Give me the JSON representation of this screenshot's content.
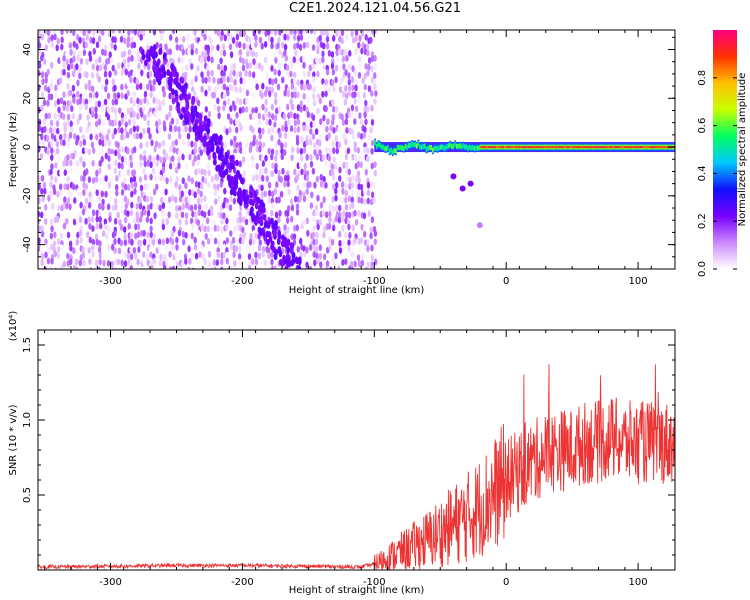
{
  "title": "C2E1.2024.121.04.56.G21",
  "chart_data": [
    {
      "type": "heatmap",
      "xlabel": "Height of straight line (km)",
      "ylabel": "Frequency (Hz)",
      "xlim": [
        -355,
        128
      ],
      "ylim": [
        -50,
        48
      ],
      "xticks": [
        -300,
        -200,
        -100,
        0,
        100
      ],
      "yticks": [
        -40,
        -20,
        0,
        20,
        40
      ],
      "colorbar": {
        "label": "Normalized spectral amplitude",
        "range": [
          0.0,
          1.0
        ],
        "ticks": [
          0.0,
          0.2,
          0.4,
          0.6,
          0.8
        ],
        "tick_labels": [
          "0.0",
          "0.2",
          "0.4",
          "0.6",
          "0.8"
        ],
        "colors": [
          "#ffffff",
          "#cc88ff",
          "#7700ff",
          "#1010ff",
          "#00c8ff",
          "#00ff60",
          "#c8ff00",
          "#ffc000",
          "#ff3000",
          "#ff0080"
        ]
      },
      "features": [
        {
          "name": "noise",
          "x_range": [
            -355,
            -100
          ],
          "y_range": [
            -50,
            48
          ],
          "amplitude": [
            0.0,
            0.15
          ]
        },
        {
          "name": "diagonal",
          "x_start": -270,
          "y_start": 40,
          "x_end": -160,
          "y_end": -50,
          "amplitude": 0.2
        },
        {
          "name": "signal line",
          "x_range": [
            -100,
            128
          ],
          "y_center": 0,
          "amplitude": [
            0.4,
            1.0
          ]
        }
      ]
    },
    {
      "type": "line",
      "xlabel": "Height of straight line (km)",
      "ylabel": "SNR (10 * v/v)",
      "y_multiplier": "(x10⁴)",
      "xlim": [
        -355,
        128
      ],
      "ylim": [
        0,
        1.6
      ],
      "xticks": [
        -300,
        -200,
        -100,
        0,
        100
      ],
      "yticks": [
        0.5,
        1.0,
        1.5
      ],
      "ytick_labels": [
        "0.5",
        "1.0",
        "1.5"
      ],
      "color": "#ee3333",
      "series": [
        {
          "x": [
            -355,
            -300,
            -250,
            -200,
            -150,
            -110,
            -100,
            -90,
            -80,
            -70,
            -60,
            -50,
            -40,
            -30,
            -20,
            -10,
            0,
            10,
            20,
            30,
            40,
            50,
            60,
            70,
            80,
            90,
            100,
            110,
            120,
            128
          ],
          "values": [
            0.02,
            0.025,
            0.03,
            0.03,
            0.025,
            0.02,
            0.04,
            0.08,
            0.12,
            0.16,
            0.2,
            0.25,
            0.3,
            0.35,
            0.42,
            0.5,
            0.6,
            0.66,
            0.72,
            0.78,
            0.8,
            0.8,
            0.85,
            0.85,
            0.88,
            0.85,
            0.85,
            0.85,
            0.85,
            0.85
          ]
        }
      ]
    }
  ]
}
